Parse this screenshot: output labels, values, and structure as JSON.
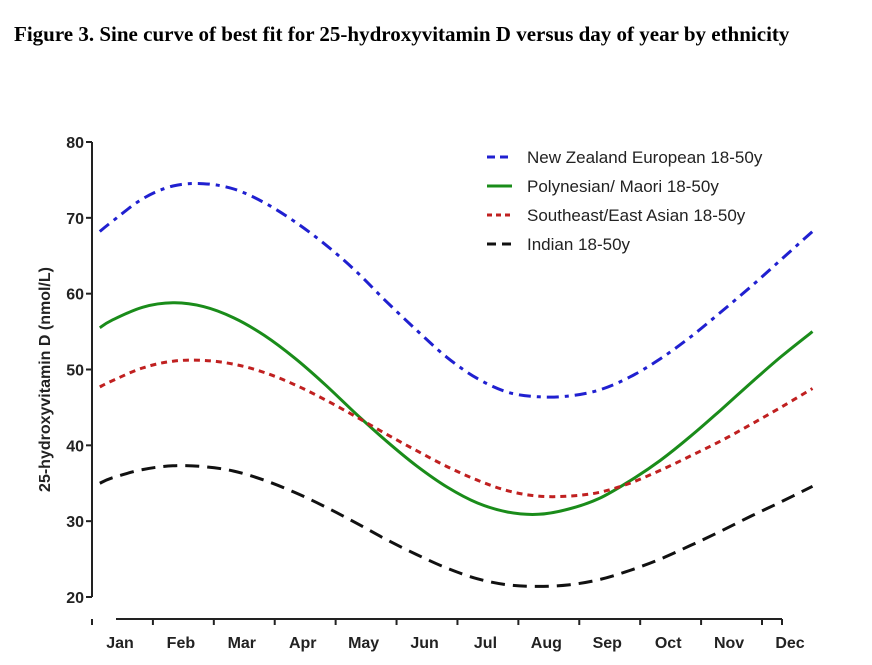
{
  "figure": {
    "title": "Figure 3. Sine curve of best fit for 25-hydroxyvitamin D versus day of year by ethnicity"
  },
  "chart_data": {
    "type": "line",
    "title": "Figure 3. Sine curve of best fit for 25-hydroxyvitamin D versus day of year by ethnicity",
    "xlabel": "",
    "ylabel": "25-hydroxyvitamin D (nmol/L)",
    "categories": [
      "Jan",
      "Feb",
      "Mar",
      "Apr",
      "May",
      "Jun",
      "Jul",
      "Aug",
      "Sep",
      "Oct",
      "Nov",
      "Dec"
    ],
    "ylim": [
      20,
      80
    ],
    "yticks": [
      20,
      30,
      40,
      50,
      60,
      70,
      80
    ],
    "grid": false,
    "legend_position": "top-right",
    "series": [
      {
        "name": "New Zealand European 18-50y",
        "color": "#2020d0",
        "dash": "dash-dot",
        "x": [
          0.8,
          1,
          1.5,
          2,
          2.5,
          3,
          3.5,
          4,
          4.5,
          5,
          5.5,
          6,
          6.5,
          7,
          7.5,
          8,
          8.5,
          9,
          9.5,
          10,
          10.5,
          11,
          11.5,
          12,
          12.5
        ],
        "values": [
          68.2,
          69.5,
          72.5,
          74.2,
          74.5,
          73.8,
          72.0,
          69.5,
          66.5,
          63.0,
          59.0,
          55.2,
          51.6,
          48.8,
          47.0,
          46.4,
          46.5,
          47.3,
          49.0,
          51.4,
          54.3,
          57.6,
          61.0,
          64.6,
          68.2
        ]
      },
      {
        "name": "Polynesian/ Maori 18-50y",
        "color": "#1a8c1a",
        "dash": "solid",
        "x": [
          0.8,
          1,
          1.5,
          2,
          2.5,
          3,
          3.5,
          4,
          4.5,
          5,
          5.5,
          6,
          6.5,
          7,
          7.5,
          8,
          8.5,
          9,
          9.5,
          10,
          10.5,
          11,
          11.5,
          12,
          12.5
        ],
        "values": [
          55.5,
          56.5,
          58.2,
          58.8,
          58.3,
          56.8,
          54.5,
          51.5,
          48.0,
          44.2,
          40.6,
          37.3,
          34.5,
          32.4,
          31.2,
          30.9,
          31.6,
          33.0,
          35.3,
          38.0,
          41.2,
          44.7,
          48.3,
          51.8,
          55.0
        ]
      },
      {
        "name": "Southeast/East Asian 18-50y",
        "color": "#c02020",
        "dash": "dot",
        "x": [
          0.8,
          1,
          1.5,
          2,
          2.5,
          3,
          3.5,
          4,
          4.5,
          5,
          5.5,
          6,
          6.5,
          7,
          7.5,
          8,
          8.5,
          9,
          9.5,
          10,
          10.5,
          11,
          11.5,
          12,
          12.5
        ],
        "values": [
          47.7,
          48.5,
          50.2,
          51.1,
          51.2,
          50.7,
          49.6,
          48.0,
          46.0,
          43.8,
          41.5,
          39.3,
          37.2,
          35.4,
          34.0,
          33.3,
          33.3,
          33.8,
          35.0,
          36.7,
          38.6,
          40.6,
          42.8,
          45.1,
          47.5
        ]
      },
      {
        "name": "Indian 18-50y",
        "color": "#111111",
        "dash": "dash",
        "x": [
          0.8,
          1,
          1.5,
          2,
          2.5,
          3,
          3.5,
          4,
          4.5,
          5,
          5.5,
          6,
          6.5,
          7,
          7.5,
          8,
          8.5,
          9,
          9.5,
          10,
          10.5,
          11,
          11.5,
          12,
          12.5
        ],
        "values": [
          35.0,
          35.7,
          36.8,
          37.3,
          37.2,
          36.6,
          35.4,
          33.8,
          31.9,
          29.8,
          27.6,
          25.6,
          23.8,
          22.4,
          21.6,
          21.4,
          21.6,
          22.3,
          23.5,
          25.0,
          26.8,
          28.7,
          30.7,
          32.6,
          34.6
        ]
      }
    ]
  }
}
